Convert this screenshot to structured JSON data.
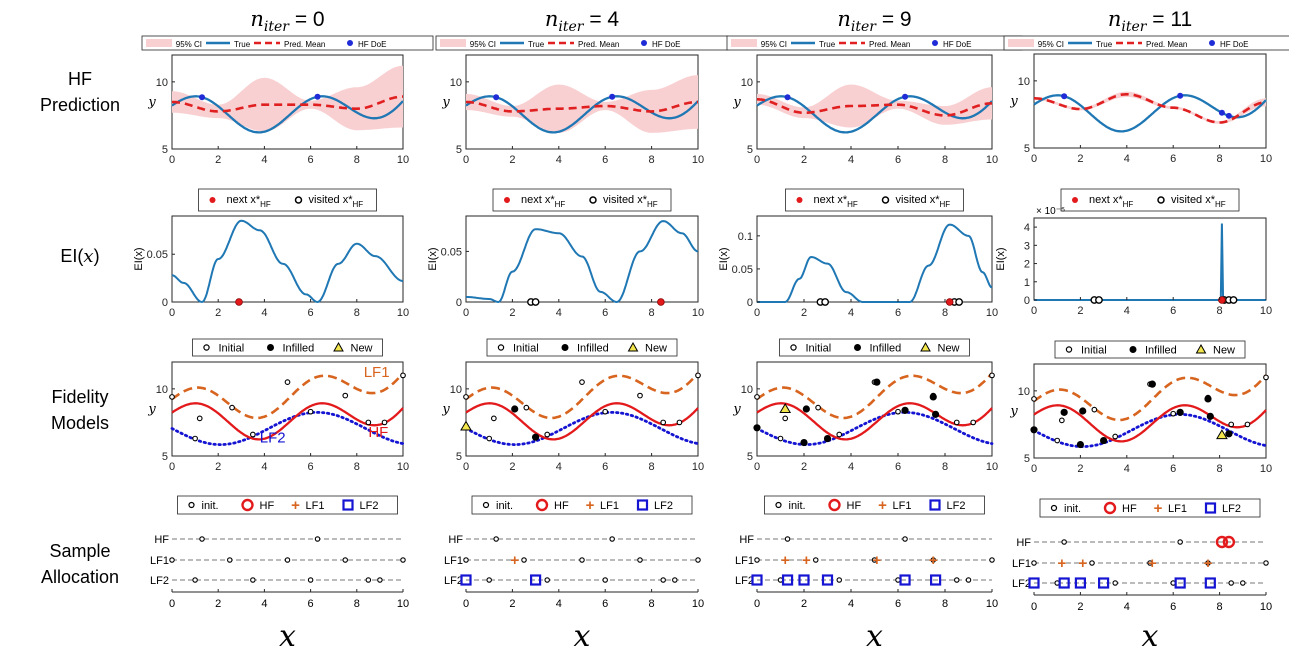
{
  "row_labels": [
    [
      "HF",
      "Prediction"
    ],
    [
      "EI(",
      "x",
      ")"
    ],
    [
      "Fidelity",
      "Models"
    ],
    [
      "Sample",
      "Allocation"
    ]
  ],
  "x_axis_symbol": "x",
  "columns": [
    {
      "title_var": "n",
      "title_sub": "iter",
      "title_eq": " = 0"
    },
    {
      "title_var": "n",
      "title_sub": "iter",
      "title_eq": " = 4"
    },
    {
      "title_var": "n",
      "title_sub": "iter",
      "title_eq": " = 9"
    },
    {
      "title_var": "n",
      "title_sub": "iter",
      "title_eq": " = 11"
    }
  ],
  "legends": {
    "pred": [
      "95% CI",
      "True",
      "Pred. Mean",
      "HF DoE"
    ],
    "ei": [
      "next x*",
      "HF",
      "visited x*",
      "HF"
    ],
    "fid": [
      "Initial",
      "Infilled",
      "New"
    ],
    "alloc": [
      "init.",
      "HF",
      "LF1",
      "LF2"
    ]
  },
  "colors": {
    "true": "#1f77b4",
    "pred": "#e02020",
    "ci": "#f9d0d2",
    "hf": "#e31a1c",
    "lf1": "#d7641f",
    "lf2": "#1414d2",
    "new": "#f2e64c"
  },
  "chart_data": [
    {
      "type": "line",
      "name": "HF Prediction",
      "xlim": [
        0,
        10
      ],
      "ylim": [
        5,
        12
      ],
      "yticks": [
        5,
        10
      ],
      "xticks": [
        0,
        2,
        4,
        6,
        8,
        10
      ],
      "ylabel": "y",
      "true_curve": "f(x) = 8 + 1.2 sin(1.2 x + 0.2) + 0.04 x^2 - 0.3 x",
      "iterations": [
        {
          "n_iter": 0,
          "pred_mean_x": [
            0,
            2,
            4,
            6,
            8,
            10
          ],
          "pred_mean_y": [
            8.5,
            7.8,
            8.3,
            8.3,
            8.0,
            8.9
          ],
          "ci_half_width": [
            0.8,
            0.5,
            2.0,
            0.3,
            1.6,
            2.3
          ],
          "hf_doe_x": [
            1.3,
            6.3
          ]
        },
        {
          "n_iter": 4,
          "pred_mean_x": [
            0,
            2,
            4,
            6,
            8,
            10
          ],
          "pred_mean_y": [
            8.5,
            7.8,
            8.0,
            8.2,
            7.8,
            8.5
          ],
          "ci_half_width": [
            0.6,
            0.4,
            1.8,
            0.3,
            1.6,
            2.0
          ],
          "hf_doe_x": [
            1.3,
            6.3
          ]
        },
        {
          "n_iter": 9,
          "pred_mean_x": [
            0,
            2,
            4,
            6,
            8,
            10
          ],
          "pred_mean_y": [
            8.7,
            7.7,
            8.2,
            8.3,
            7.5,
            8.4
          ],
          "ci_half_width": [
            0.4,
            0.4,
            1.6,
            0.3,
            0.7,
            1.2
          ],
          "hf_doe_x": [
            1.3,
            6.3
          ]
        },
        {
          "n_iter": 11,
          "pred_mean_x": [
            0,
            2,
            4,
            6,
            8,
            10
          ],
          "pred_mean_y": [
            8.7,
            7.9,
            9.0,
            8.0,
            6.9,
            8.4
          ],
          "ci_half_width": [
            0.1,
            0.1,
            0.2,
            0.1,
            0.1,
            0.3
          ],
          "hf_doe_x": [
            1.3,
            6.3,
            8.1,
            8.4
          ]
        }
      ]
    },
    {
      "type": "line",
      "name": "EI(x)",
      "xlim": [
        0,
        10
      ],
      "xticks": [
        0,
        2,
        4,
        6,
        8,
        10
      ],
      "ylabel": "EI(x)",
      "iterations": [
        {
          "n_iter": 0,
          "ylim": [
            0,
            0.09
          ],
          "yticks": [
            0,
            0.05
          ],
          "ytick_labels": [
            "0",
            "0.05"
          ],
          "x": [
            0,
            0.5,
            1.3,
            2,
            3,
            3.8,
            4.8,
            5.8,
            6.3,
            7.2,
            8,
            8.8,
            10
          ],
          "y": [
            0.028,
            0.02,
            0.0,
            0.045,
            0.085,
            0.075,
            0.04,
            0.008,
            0.0,
            0.04,
            0.061,
            0.048,
            0.022
          ],
          "next_x": [
            2.9
          ],
          "visited_x": []
        },
        {
          "n_iter": 4,
          "ylim": [
            0,
            0.085
          ],
          "yticks": [
            0,
            0.05
          ],
          "ytick_labels": [
            "0",
            "0.05"
          ],
          "x": [
            0,
            1.0,
            1.4,
            2,
            3,
            4,
            5,
            5.8,
            6.5,
            7.5,
            8.5,
            9.3,
            10
          ],
          "y": [
            0.005,
            0.003,
            0.0,
            0.03,
            0.072,
            0.068,
            0.045,
            0.01,
            0.0,
            0.05,
            0.08,
            0.068,
            0.05
          ],
          "next_x": [
            8.4
          ],
          "visited_x": [
            2.8,
            3.0
          ]
        },
        {
          "n_iter": 9,
          "ylim": [
            0,
            0.13
          ],
          "yticks": [
            0,
            0.05,
            0.1
          ],
          "ytick_labels": [
            "0",
            "0.05",
            "0.1"
          ],
          "x": [
            0,
            1.2,
            1.8,
            2.3,
            3.0,
            3.8,
            4.5,
            6.5,
            7.3,
            8.2,
            9.0,
            9.6,
            10
          ],
          "y": [
            0.0,
            0.0,
            0.035,
            0.068,
            0.058,
            0.015,
            0.0,
            0.0,
            0.055,
            0.117,
            0.1,
            0.045,
            0.022
          ],
          "next_x": [
            8.2
          ],
          "visited_x": [
            2.7,
            2.9,
            8.4,
            8.6
          ]
        },
        {
          "n_iter": 11,
          "ylim": [
            0,
            4.5e-05
          ],
          "yticks": [
            0,
            1e-05,
            2e-05,
            3e-05,
            4e-05
          ],
          "ytick_labels": [
            "0",
            "1",
            "2",
            "3",
            "4"
          ],
          "exponent_label": "× 10⁻⁵",
          "x": [
            0,
            8.05,
            8.1,
            8.15,
            8.2,
            10
          ],
          "y": [
            0,
            0,
            4.2e-05,
            0,
            0,
            0
          ],
          "next_x": [
            8.1
          ],
          "visited_x": [
            2.6,
            2.8,
            8.2,
            8.4,
            8.6
          ]
        }
      ]
    },
    {
      "type": "line",
      "name": "Fidelity Models",
      "xlim": [
        0,
        10
      ],
      "ylim": [
        5,
        12
      ],
      "yticks": [
        5,
        10
      ],
      "xticks": [
        0,
        2,
        4,
        6,
        8,
        10
      ],
      "ylabel": "y",
      "series": [
        {
          "name": "HF"
        },
        {
          "name": "LF1"
        },
        {
          "name": "LF2"
        }
      ],
      "lf1_curve": "f_HF(x) + 1.0 + 0.16 x",
      "lf2_curve": "7.05 - 1.2 sin(0.75 x)",
      "initial": [
        [
          0,
          9.4
        ],
        [
          1.2,
          7.8
        ],
        [
          2.6,
          8.6
        ],
        [
          5.0,
          10.5
        ],
        [
          7.5,
          9.5
        ],
        [
          10,
          11.0
        ],
        [
          1.0,
          6.3
        ],
        [
          3.5,
          6.6
        ],
        [
          6.0,
          8.3
        ],
        [
          8.5,
          7.5
        ],
        [
          9.2,
          7.5
        ]
      ],
      "iterations": [
        {
          "n_iter": 0,
          "infilled": [],
          "new": []
        },
        {
          "n_iter": 4,
          "infilled": [
            [
              2.1,
              8.5
            ],
            [
              3.0,
              6.4
            ]
          ],
          "new": [
            [
              0.0,
              7.2
            ]
          ]
        },
        {
          "n_iter": 9,
          "infilled": [
            [
              0.0,
              7.1
            ],
            [
              2.1,
              8.5
            ],
            [
              2.0,
              6.0
            ],
            [
              3.0,
              6.3
            ],
            [
              5.1,
              10.5
            ],
            [
              6.3,
              8.4
            ],
            [
              7.5,
              9.4
            ],
            [
              7.6,
              8.1
            ]
          ],
          "new": [
            [
              1.2,
              8.5
            ]
          ]
        },
        {
          "n_iter": 11,
          "infilled": [
            [
              0.0,
              7.1
            ],
            [
              1.3,
              8.4
            ],
            [
              2.1,
              8.5
            ],
            [
              2.0,
              6.0
            ],
            [
              3.0,
              6.3
            ],
            [
              5.1,
              10.5
            ],
            [
              6.3,
              8.4
            ],
            [
              7.5,
              9.4
            ],
            [
              7.6,
              8.1
            ],
            [
              8.4,
              6.8
            ]
          ],
          "new": [
            [
              8.1,
              6.7
            ]
          ]
        }
      ]
    },
    {
      "type": "scatter",
      "name": "Sample Allocation",
      "xlim": [
        0,
        10
      ],
      "xticks": [
        0,
        2,
        4,
        6,
        8,
        10
      ],
      "levels": [
        "HF",
        "LF1",
        "LF2"
      ],
      "init": {
        "HF": [
          1.3,
          6.3
        ],
        "LF1": [
          0,
          2.5,
          5.0,
          7.5,
          10
        ],
        "LF2": [
          1.0,
          3.5,
          6.0,
          8.5,
          9.0
        ]
      },
      "iterations": [
        {
          "n_iter": 0,
          "HF": [],
          "LF1": [],
          "LF2": []
        },
        {
          "n_iter": 4,
          "HF": [],
          "LF1": [
            2.1
          ],
          "LF2": [
            0.0,
            3.0
          ]
        },
        {
          "n_iter": 9,
          "HF": [],
          "LF1": [
            1.2,
            2.1,
            5.1,
            7.5
          ],
          "LF2": [
            0.0,
            1.3,
            2.0,
            3.0,
            6.3,
            7.6
          ]
        },
        {
          "n_iter": 11,
          "HF": [
            8.1,
            8.4
          ],
          "LF1": [
            1.2,
            2.1,
            5.1,
            7.5
          ],
          "LF2": [
            0.0,
            1.3,
            2.0,
            3.0,
            6.3,
            7.6
          ]
        }
      ]
    }
  ]
}
